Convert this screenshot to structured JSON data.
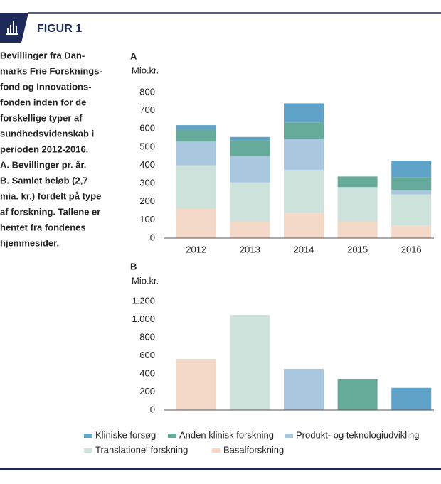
{
  "header": {
    "title": "FIGUR 1"
  },
  "caption": [
    "Bevillinger fra Dan-",
    "marks Frie Forsknings-",
    "fond og Innovations-",
    "fonden inden for de",
    "forskellige typer af",
    "sundhedsvidenskab i",
    "perioden 2012-2016.",
    "A. Bevillinger pr. år.",
    "B. Samlet beløb (2,7",
    "mia. kr.) fordelt på type",
    "af forskning. Tallene er",
    "hentet fra fondenes",
    "hjemmesider."
  ],
  "chart_data": [
    {
      "type": "stacked_bar",
      "panel": "A",
      "ylabel": "Mio.kr.",
      "categories": [
        "2012",
        "2013",
        "2014",
        "2015",
        "2016"
      ],
      "series": [
        {
          "name": "Kliniske forsøg",
          "color": "#5fa3c9",
          "values": [
            25,
            20,
            105,
            0,
            90
          ]
        },
        {
          "name": "Anden klinisk forskning",
          "color": "#66ab9a",
          "values": [
            65,
            85,
            90,
            58,
            70
          ]
        },
        {
          "name": "Produkt- og teknologiudvikling",
          "color": "#a9c8df",
          "values": [
            130,
            145,
            170,
            0,
            25
          ]
        },
        {
          "name": "Translationel forskning",
          "color": "#cde3dc",
          "values": [
            240,
            215,
            235,
            190,
            170
          ]
        },
        {
          "name": "Basalforskning",
          "color": "#f5d9c8",
          "values": [
            160,
            90,
            140,
            90,
            70
          ]
        }
      ],
      "ylim": [
        0,
        800
      ],
      "yticks": [
        0,
        100,
        200,
        300,
        400,
        500,
        600,
        700,
        800
      ],
      "legend": "bottom"
    },
    {
      "type": "bar",
      "panel": "B",
      "ylabel": "Mio.kr.",
      "categories": [
        null,
        null,
        null,
        null,
        null
      ],
      "values": [
        565,
        1050,
        455,
        345,
        245
      ],
      "colors": [
        "#f5d9c8",
        "#cde3dc",
        "#a9c8df",
        "#66ab9a",
        "#5fa3c9"
      ],
      "ylim": [
        0,
        1200
      ],
      "yticks": [
        0,
        200,
        400,
        600,
        800,
        {
          "value": 1000,
          "label": "1.000"
        },
        {
          "value": 1200,
          "label": "1.200"
        }
      ]
    }
  ]
}
